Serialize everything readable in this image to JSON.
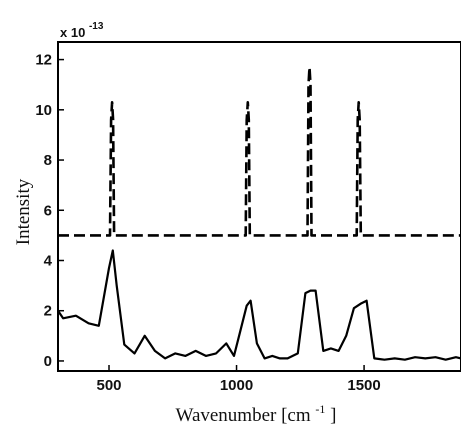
{
  "chart_data": {
    "type": "line",
    "xlabel_base": "Wavenumber [cm",
    "xlabel_exp": "-1",
    "xlabel_end": "]",
    "ylabel": "Intensity",
    "y_multiplier_base": "x 10",
    "y_multiplier_exp": "-13",
    "xlim": [
      300,
      1880
    ],
    "ylim": [
      -0.4,
      12.7
    ],
    "x_ticks": [
      500,
      1000,
      1500
    ],
    "y_ticks": [
      0,
      2,
      4,
      6,
      8,
      10,
      12
    ],
    "grid": false,
    "legend": "none",
    "series": [
      {
        "style": "dashed",
        "color": "#000000",
        "x": [
          300,
          498,
          504,
          508,
          512,
          516,
          520,
          526,
          1030,
          1036,
          1040,
          1044,
          1048,
          1052,
          1058,
          1272,
          1278,
          1282,
          1286,
          1290,
          1294,
          1300,
          1465,
          1471,
          1475,
          1479,
          1483,
          1487,
          1493,
          1880
        ],
        "y": [
          5.0,
          5.0,
          5.0,
          9.6,
          10.3,
          9.6,
          5.0,
          5.0,
          5.0,
          5.0,
          9.6,
          10.3,
          9.6,
          5.0,
          5.0,
          5.0,
          5.0,
          11.0,
          11.7,
          11.0,
          5.0,
          5.0,
          5.0,
          5.0,
          9.6,
          10.3,
          9.6,
          5.0,
          5.0,
          5.0
        ]
      },
      {
        "style": "solid",
        "color": "#000000",
        "x": [
          300,
          320,
          370,
          420,
          460,
          500,
          515,
          530,
          560,
          600,
          640,
          680,
          720,
          760,
          800,
          840,
          880,
          920,
          960,
          990,
          1010,
          1040,
          1055,
          1080,
          1110,
          1140,
          1170,
          1200,
          1240,
          1270,
          1290,
          1310,
          1340,
          1370,
          1400,
          1430,
          1460,
          1490,
          1510,
          1540,
          1580,
          1620,
          1660,
          1700,
          1740,
          1780,
          1820,
          1860,
          1880
        ],
        "y": [
          2.0,
          1.7,
          1.8,
          1.5,
          1.4,
          3.7,
          4.4,
          3.0,
          0.65,
          0.3,
          1.0,
          0.4,
          0.1,
          0.3,
          0.2,
          0.4,
          0.2,
          0.3,
          0.7,
          0.2,
          1.0,
          2.2,
          2.4,
          0.7,
          0.1,
          0.2,
          0.1,
          0.1,
          0.3,
          2.7,
          2.8,
          2.8,
          0.4,
          0.5,
          0.4,
          1.0,
          2.1,
          2.3,
          2.4,
          0.1,
          0.05,
          0.1,
          0.05,
          0.15,
          0.1,
          0.15,
          0.05,
          0.15,
          0.1
        ]
      }
    ]
  }
}
